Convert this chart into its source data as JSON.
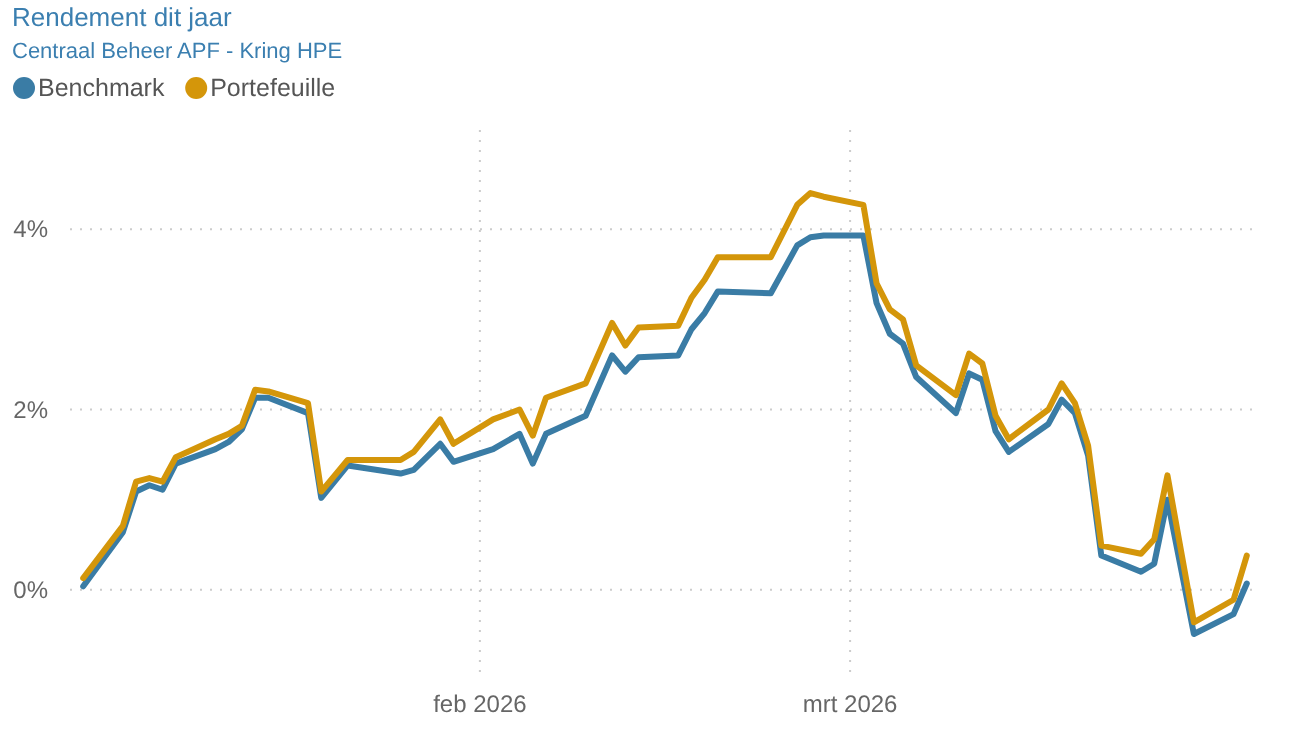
{
  "chart_data": {
    "type": "line",
    "title": "Rendement dit jaar",
    "subtitle": "Centraal Beheer APF - Kring HPE",
    "x": [
      "2026-01-02",
      "2026-01-05",
      "2026-01-06",
      "2026-01-07",
      "2026-01-08",
      "2026-01-09",
      "2026-01-12",
      "2026-01-13",
      "2026-01-14",
      "2026-01-15",
      "2026-01-16",
      "2026-01-19",
      "2026-01-20",
      "2026-01-22",
      "2026-01-26",
      "2026-01-27",
      "2026-01-29",
      "2026-01-30",
      "2026-02-02",
      "2026-02-04",
      "2026-02-05",
      "2026-02-06",
      "2026-02-09",
      "2026-02-11",
      "2026-02-12",
      "2026-02-13",
      "2026-02-16",
      "2026-02-17",
      "2026-02-18",
      "2026-02-19",
      "2026-02-23",
      "2026-02-25",
      "2026-02-26",
      "2026-02-27",
      "2026-03-02",
      "2026-03-03",
      "2026-03-04",
      "2026-03-05",
      "2026-03-06",
      "2026-03-09",
      "2026-03-10",
      "2026-03-11",
      "2026-03-12",
      "2026-03-13",
      "2026-03-16",
      "2026-03-17",
      "2026-03-18",
      "2026-03-19",
      "2026-03-20",
      "2026-03-23",
      "2026-03-24",
      "2026-03-25",
      "2026-03-27",
      "2026-03-30",
      "2026-03-31"
    ],
    "series": [
      {
        "name": "Benchmark",
        "color": "#3a7ca5",
        "values": [
          0.04,
          0.64,
          1.09,
          1.16,
          1.11,
          1.4,
          1.56,
          1.64,
          1.78,
          2.13,
          2.13,
          1.96,
          1.02,
          1.38,
          1.29,
          1.33,
          1.62,
          1.42,
          1.56,
          1.73,
          1.4,
          1.73,
          1.93,
          2.6,
          2.42,
          2.58,
          2.6,
          2.89,
          3.07,
          3.31,
          3.29,
          3.82,
          3.91,
          3.93,
          3.93,
          3.18,
          2.84,
          2.73,
          2.36,
          1.96,
          2.4,
          2.33,
          1.76,
          1.53,
          1.84,
          2.11,
          1.96,
          1.49,
          0.38,
          0.2,
          0.29,
          1.0,
          -0.49,
          -0.27,
          0.07
        ]
      },
      {
        "name": "Portefeuille",
        "color": "#d4960a",
        "values": [
          0.13,
          0.71,
          1.2,
          1.24,
          1.2,
          1.47,
          1.67,
          1.73,
          1.82,
          2.22,
          2.2,
          2.07,
          1.09,
          1.44,
          1.44,
          1.53,
          1.89,
          1.62,
          1.89,
          2.0,
          1.71,
          2.13,
          2.29,
          2.96,
          2.71,
          2.91,
          2.93,
          3.24,
          3.44,
          3.69,
          3.69,
          4.27,
          4.4,
          4.36,
          4.27,
          3.4,
          3.11,
          3.0,
          2.49,
          2.16,
          2.62,
          2.51,
          1.93,
          1.67,
          2.0,
          2.29,
          2.07,
          1.6,
          0.49,
          0.4,
          0.56,
          1.27,
          -0.36,
          -0.11,
          0.38
        ]
      }
    ],
    "xlim": [
      "2026-01-01",
      "2026-04-01"
    ],
    "xticks": [
      {
        "value": "2026-02-01",
        "label": "feb 2026"
      },
      {
        "value": "2026-03-01",
        "label": "mrt 2026"
      }
    ],
    "ylim": [
      -1,
      5.1
    ],
    "yticks": [
      {
        "value": 0,
        "label": "0%"
      },
      {
        "value": 2,
        "label": "2%"
      },
      {
        "value": 4,
        "label": "4%"
      }
    ],
    "grid": true,
    "legend": "top left",
    "marker": "none",
    "line_style": "solid"
  }
}
